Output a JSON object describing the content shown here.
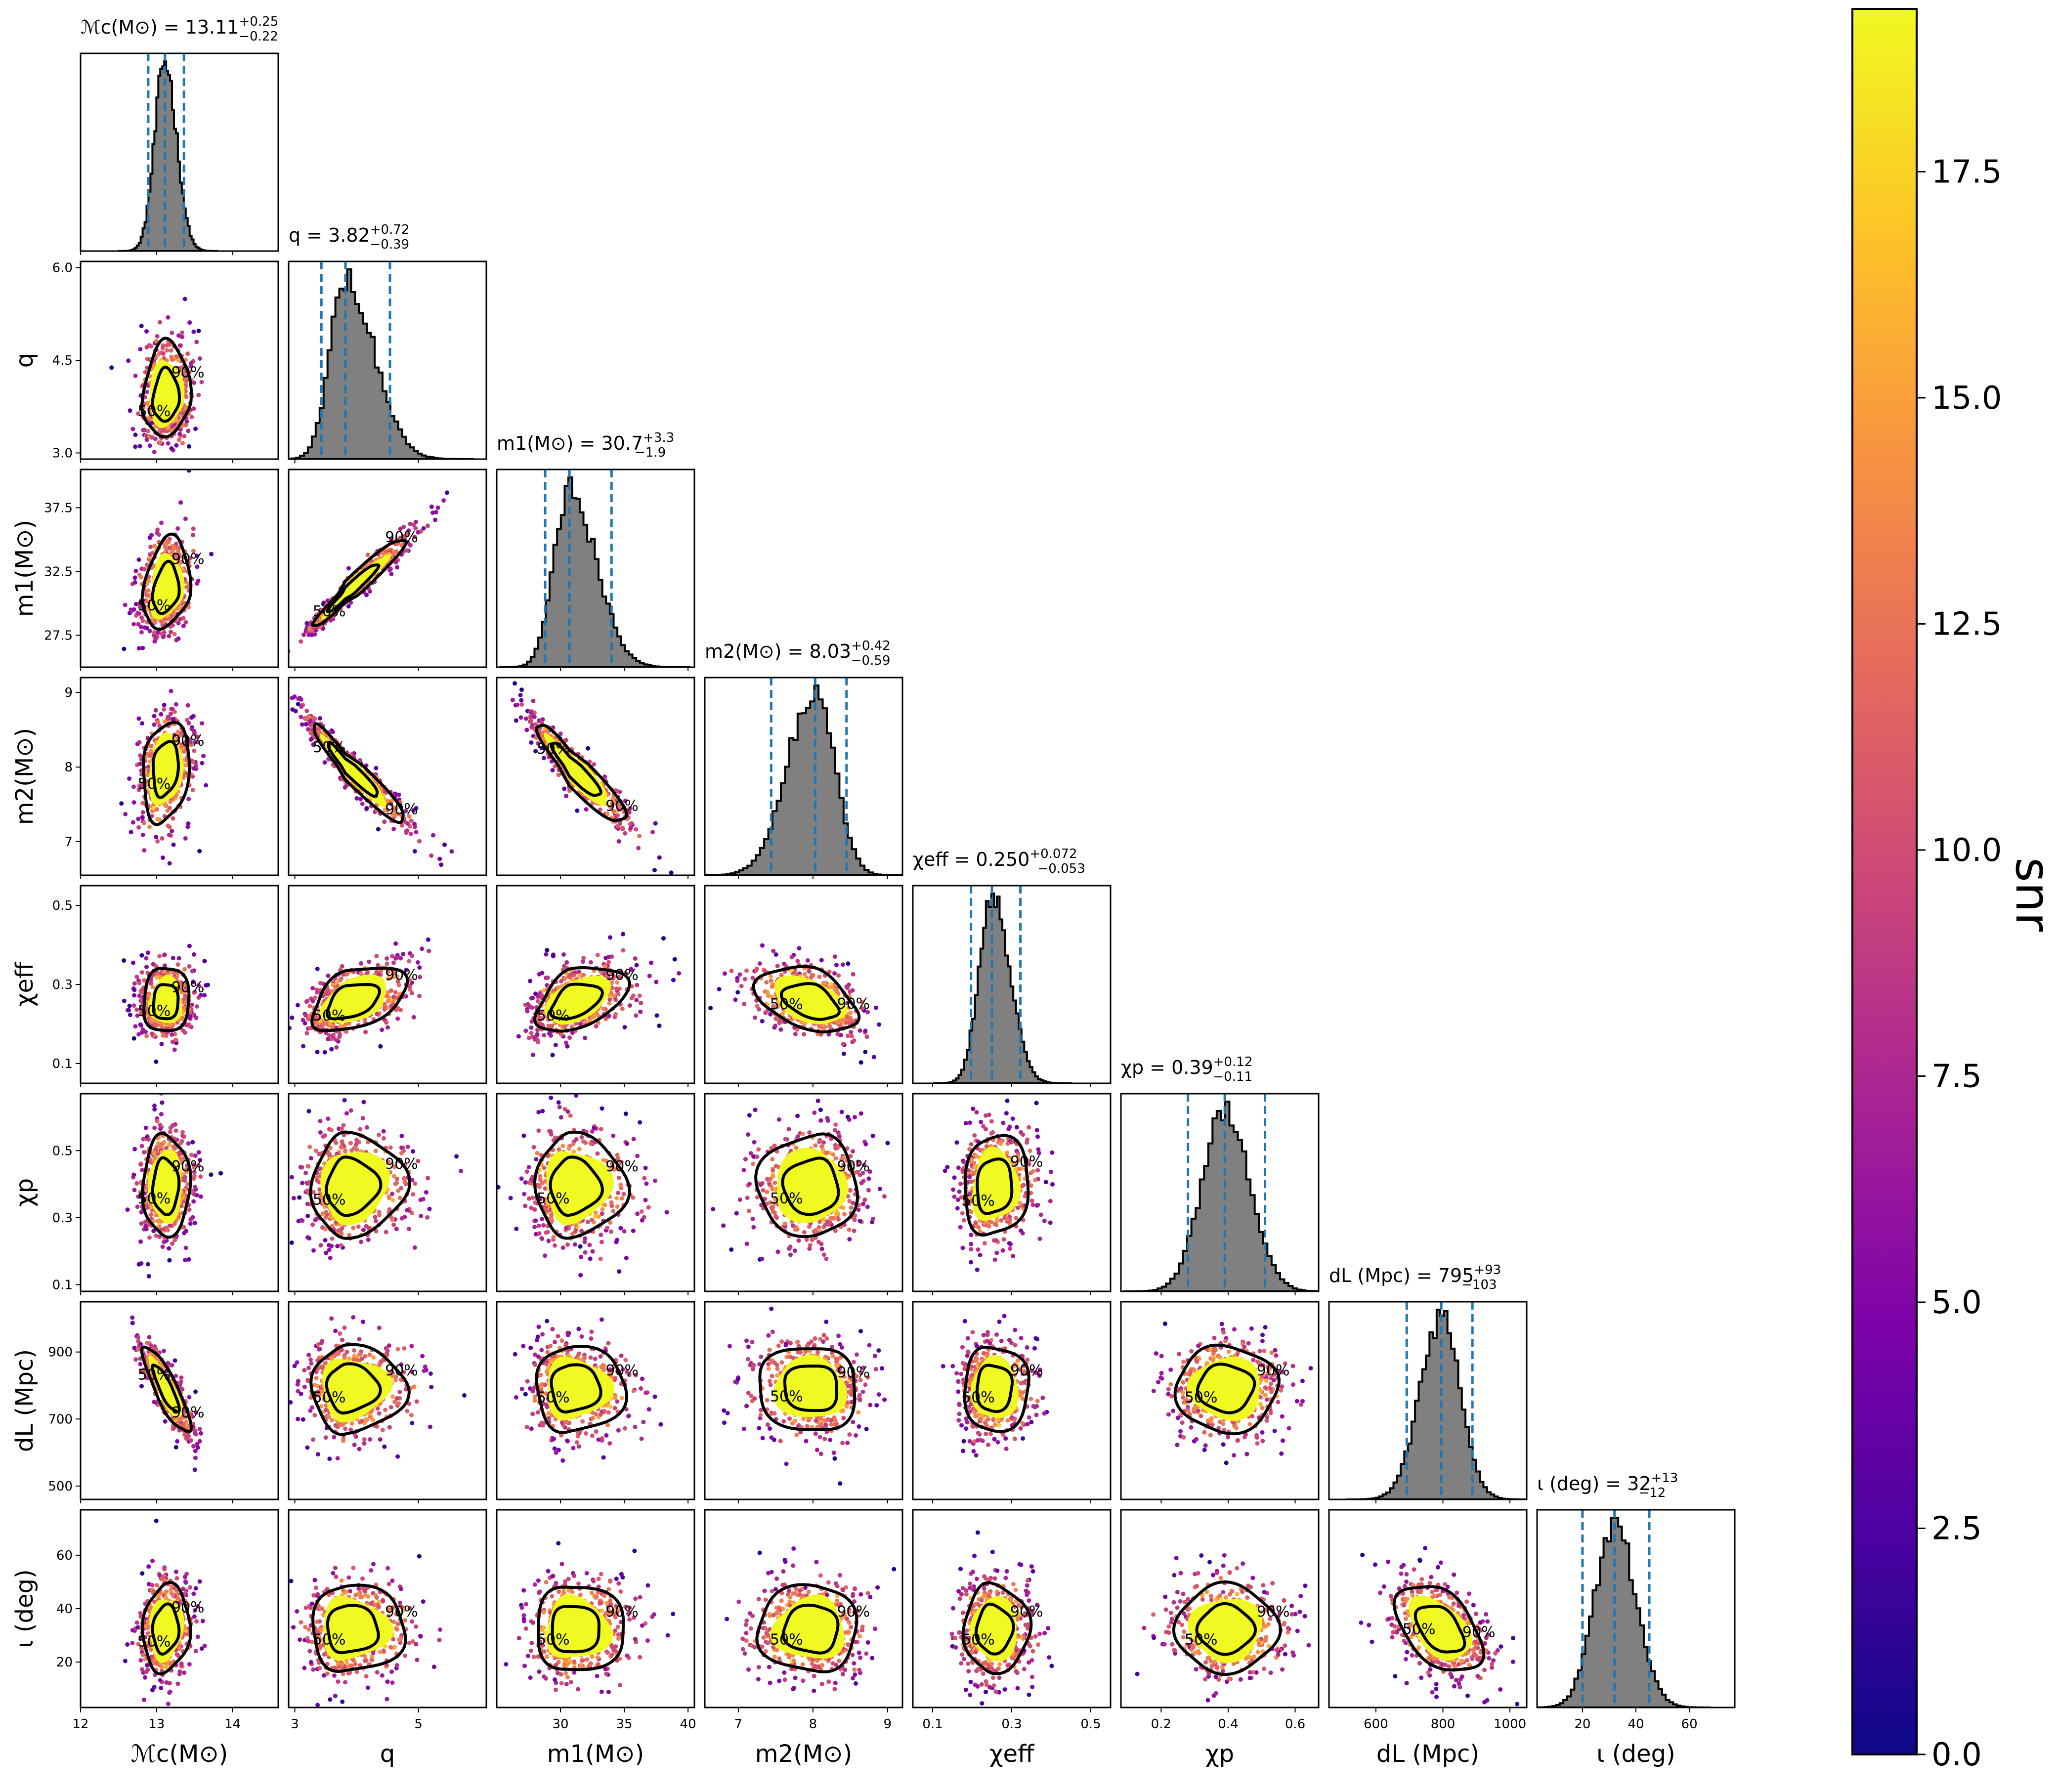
{
  "chart_data": {
    "type": "scatter",
    "variant": "corner-plot",
    "parameters": [
      {
        "key": "mc",
        "title_main": "ℳc(M⊙) = 13.11",
        "sup": "+0.25",
        "sub": "−0.22",
        "axis_label": "ℳc(M⊙)",
        "ylabel": "",
        "median": 13.11,
        "lo": 12.89,
        "hi": 13.36,
        "range": [
          12.0,
          14.6
        ],
        "ticks": [
          12,
          13,
          14
        ],
        "tick_labels": [
          "12",
          "13",
          "14"
        ]
      },
      {
        "key": "q",
        "title_main": "q = 3.82",
        "sup": "+0.72",
        "sub": "−0.39",
        "axis_label": "q",
        "ylabel": "q",
        "median": 3.82,
        "lo": 3.43,
        "hi": 4.54,
        "range": [
          2.9,
          6.1
        ],
        "ticks": [
          3,
          5
        ],
        "tick_labels": [
          "3",
          "5"
        ],
        "yticks": [
          3.0,
          4.5,
          6.0
        ],
        "ytick_labels": [
          "3.0",
          "4.5",
          "6.0"
        ]
      },
      {
        "key": "m1",
        "title_main": "m1(M⊙) = 30.7",
        "sup": "+3.3",
        "sub": "−1.9",
        "axis_label": "m1(M⊙)",
        "ylabel": "m1(M⊙)",
        "median": 30.7,
        "lo": 28.8,
        "hi": 34.0,
        "range": [
          25.0,
          40.5
        ],
        "ticks": [
          30,
          35,
          40
        ],
        "tick_labels": [
          "30",
          "35",
          "40"
        ],
        "yticks": [
          27.5,
          32.5,
          37.5
        ],
        "ytick_labels": [
          "27.5",
          "32.5",
          "37.5"
        ]
      },
      {
        "key": "m2",
        "title_main": "m2(M⊙) = 8.03",
        "sup": "+0.42",
        "sub": "−0.59",
        "axis_label": "m2(M⊙)",
        "ylabel": "m2(M⊙)",
        "median": 8.03,
        "lo": 7.44,
        "hi": 8.45,
        "range": [
          6.55,
          9.2
        ],
        "ticks": [
          7,
          8,
          9
        ],
        "tick_labels": [
          "7",
          "8",
          "9"
        ],
        "yticks": [
          7,
          8,
          9
        ],
        "ytick_labels": [
          "7",
          "8",
          "9"
        ]
      },
      {
        "key": "chieff",
        "title_main": "χeff = 0.250",
        "sup": "+0.072",
        "sub": "−0.053",
        "axis_label": "χeff",
        "ylabel": "χeff",
        "median": 0.25,
        "lo": 0.197,
        "hi": 0.322,
        "range": [
          0.05,
          0.55
        ],
        "ticks": [
          0.1,
          0.3,
          0.5
        ],
        "tick_labels": [
          "0.1",
          "0.3",
          "0.5"
        ],
        "yticks": [
          0.1,
          0.3,
          0.5
        ],
        "ytick_labels": [
          "0.1",
          "0.3",
          "0.5"
        ]
      },
      {
        "key": "chip",
        "title_main": "χp = 0.39",
        "sup": "+0.12",
        "sub": "−0.11",
        "axis_label": "χp",
        "ylabel": "χp",
        "median": 0.39,
        "lo": 0.28,
        "hi": 0.51,
        "range": [
          0.08,
          0.67
        ],
        "ticks": [
          0.2,
          0.4,
          0.6
        ],
        "tick_labels": [
          "0.2",
          "0.4",
          "0.6"
        ],
        "yticks": [
          0.1,
          0.3,
          0.5
        ],
        "ytick_labels": [
          "0.1",
          "0.3",
          "0.5"
        ]
      },
      {
        "key": "dl",
        "title_main": "dL (Mpc) = 795",
        "sup": "+93",
        "sub": "−103",
        "axis_label": "dL (Mpc)",
        "ylabel": "dL (Mpc)",
        "median": 795,
        "lo": 692,
        "hi": 888,
        "range": [
          460,
          1050
        ],
        "ticks": [
          600,
          800,
          1000
        ],
        "tick_labels": [
          "600",
          "800",
          "1000"
        ],
        "yticks": [
          500,
          700,
          900
        ],
        "ytick_labels": [
          "500",
          "700",
          "900"
        ]
      },
      {
        "key": "iota",
        "title_main": "ι (deg) = 32",
        "sup": "+13",
        "sub": "−12",
        "axis_label": "ι (deg)",
        "ylabel": "ι (deg)",
        "median": 32,
        "lo": 20,
        "hi": 45,
        "range": [
          3,
          77
        ],
        "ticks": [
          20,
          40,
          60
        ],
        "tick_labels": [
          "20",
          "40",
          "60"
        ],
        "yticks": [
          20,
          40,
          60
        ],
        "ytick_labels": [
          "20",
          "40",
          "60"
        ]
      }
    ],
    "contour_labels": [
      "50%",
      "90%"
    ],
    "colorbar": {
      "label": "snr",
      "range": [
        0.0,
        19.3
      ],
      "ticks": [
        0.0,
        2.5,
        5.0,
        7.5,
        10.0,
        12.5,
        15.0,
        17.5
      ],
      "tick_labels": [
        "0.0",
        "2.5",
        "5.0",
        "7.5",
        "10.0",
        "12.5",
        "15.0",
        "17.5"
      ],
      "colormap": "plasma"
    },
    "hist_color": "#808080",
    "quantile_line_color": "#1f77b4"
  }
}
